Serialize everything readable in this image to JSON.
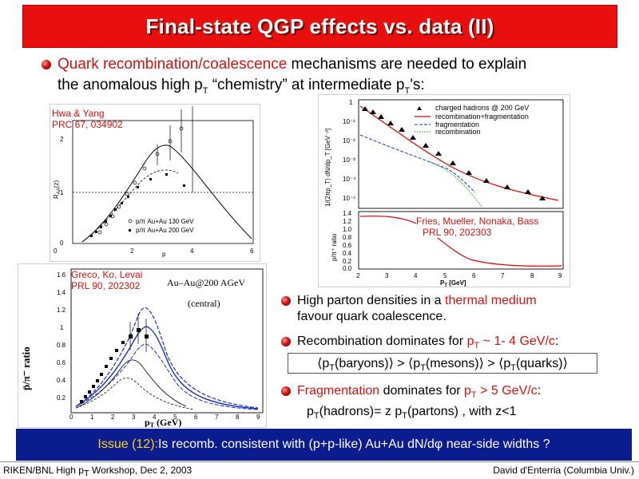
{
  "slide": {
    "title": "Final-state QGP effects vs. data (II)",
    "intro": {
      "highlight": "Quark recombination/coalescence",
      "line1_rest": " mechanisms are needed to explain",
      "line2_a": "the anomalous high p",
      "line2_sub1": "T",
      "line2_b": " “chemistry” at intermediate p",
      "line2_sub2": "T",
      "line2_c": "'s:"
    }
  },
  "figure_hwa": {
    "citation_line1": "Hwa & Yang",
    "citation_line2": "PRC 67, 034902",
    "y_ticks": [
      "2",
      "1",
      "0"
    ],
    "x_ticks": [
      "0",
      "2",
      "4",
      "6"
    ],
    "ylabel": "R",
    "ylabel_sub": "AA",
    "ylabel_tail": "(z)",
    "legend1": "p/π Au+Au 130 GeV",
    "legend2": "p/π Au+Au 200 GeV",
    "xlabel_fragment": "p"
  },
  "figure_fries": {
    "citation_line1": "Fries, Mueller, Nonaka, Bass",
    "citation_line2": "PRL 90, 202303",
    "top_y_ticks": [
      "1",
      "10⁻¹",
      "10⁻²",
      "10⁻³",
      "10⁻⁴",
      "10⁻⁵"
    ],
    "top_ylabel": "1/(2πp_T) dN/dp_T [GeV⁻²]",
    "legend": [
      "charged hadrons @ 200 GeV",
      "recombination+fragmentation",
      "fragmentation",
      "recombination"
    ],
    "bottom_y_ticks": [
      "1.4",
      "1.2",
      "1.0",
      "0.8",
      "0.6",
      "0.4",
      "0.2",
      "0.0"
    ],
    "bottom_ylabel": "p/π⁺ ratio",
    "x_ticks": [
      "2",
      "3",
      "4",
      "5",
      "6",
      "7",
      "8",
      "9"
    ],
    "xlabel": "P",
    "xlabel_sub": "T",
    "xlabel_tail": " [GeV]"
  },
  "figure_greco": {
    "citation_line1": "Greco, Ko, Levai",
    "citation_line2": "PRL 90, 202302",
    "system": "Au–Au@200 AGeV",
    "centrality": "(central)",
    "ylabel": "p̄/π⁻ ratio",
    "y_ticks": [
      "1.6",
      "1.4",
      "1.2",
      "1",
      "0.8",
      "0.6",
      "0.4",
      "0.2"
    ],
    "x_ticks": [
      "0",
      "1",
      "2",
      "3",
      "4",
      "5",
      "6",
      "7",
      "8",
      "9"
    ],
    "xlabel": "p",
    "xlabel_sub": "T",
    "xlabel_tail": " (GeV)"
  },
  "bullets": {
    "b1_a": "High parton densities in a ",
    "b1_red": "thermal medium",
    "b1_b": "favour quark coalescence.",
    "b2_a": "Recombination dominates for ",
    "b2_red_p": "p",
    "b2_red_sub": "T",
    "b2_red_rest": " ~ 1- 4 GeV/c",
    "b2_colon": ":",
    "ratio": {
      "part1": "⟨p",
      "sub1": "T",
      "part2": "(baryons)⟩ > ⟨p",
      "sub2": "T",
      "part3": "(mesons)⟩ > ⟨p",
      "sub3": "T",
      "part4": "(quarks)⟩"
    },
    "b3_red": "Fragmentation",
    "b3_a": " dominates for ",
    "b3_red_p": "p",
    "b3_red_sub": "T",
    "b3_red_rest": " > 5 GeV/c",
    "b3_colon": ":",
    "b4_a": "p",
    "b4_sub1": "T",
    "b4_b": "(hadrons)= z p",
    "b4_sub2": "T",
    "b4_c": "(partons) , with z<1"
  },
  "issue": {
    "label": "Issue (12):",
    "text": " Is recomb. consistent with (p+p-like) Au+Au dN/dφ near-side widths ?"
  },
  "footer": {
    "left_a": "RIKEN/BNL High p",
    "left_sub": "T",
    "left_b": " Workshop, Dec 2, 2003",
    "right": "David d'Enterria (Columbia Univ.)"
  },
  "colors": {
    "title_bg": "#e8100e",
    "accent_red": "#d81010",
    "issue_bg": "#0b1d8e",
    "issue_label": "#ffd21a"
  }
}
